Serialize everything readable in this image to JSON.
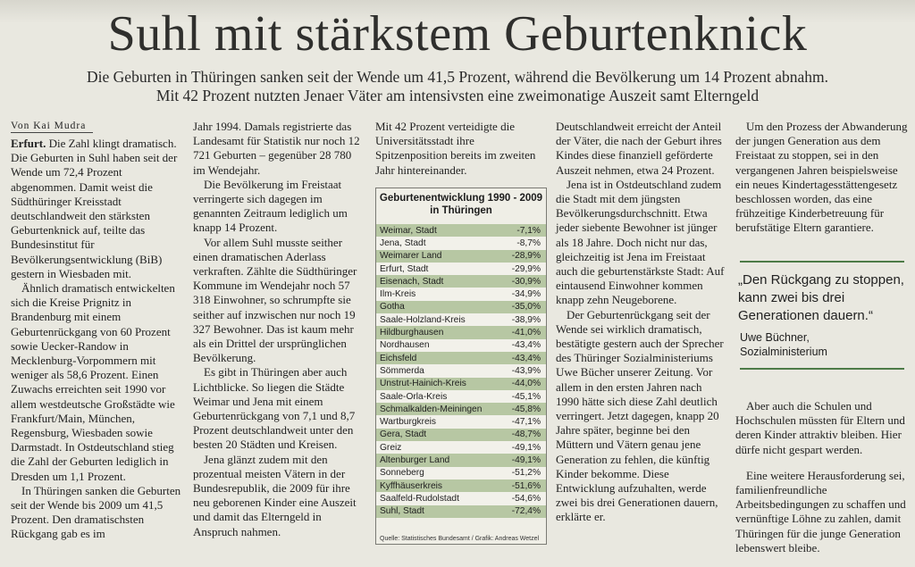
{
  "headline": "Suhl mit stärkstem Geburtenknick",
  "subhead": [
    "Die Geburten in Thüringen sanken seit der Wende um 41,5 Prozent, während die Bevölkerung um 14 Prozent abnahm.",
    "Mit 42 Prozent nutzten Jenaer Väter am intensivsten eine zweimonatige Auszeit samt Elterngeld"
  ],
  "byline": "Von Kai Mudra",
  "col1": {
    "location": "Erfurt.",
    "p1": "Die Zahl klingt dramatisch. Die Geburten in Suhl haben seit der Wende um 72,4 Prozent abgenommen. Damit weist die Südthüringer Kreisstadt deutschlandweit den stärksten Geburtenknick auf, teilte das Bundesinstitut für Bevölkerungsentwicklung (BiB) gestern in Wiesbaden mit.",
    "p2": "Ähnlich dramatisch entwickelten sich die Kreise Prignitz in Brandenburg mit einem Geburtenrückgang von 60 Prozent sowie Uecker-Randow in Mecklenburg-Vorpommern mit weniger als 58,6 Prozent. Einen Zuwachs erreichten seit 1990 vor allem westdeutsche Großstädte wie Frankfurt/Main, München, Regensburg, Wiesbaden sowie Darmstadt. In Ostdeutschland stieg die Zahl der Geburten lediglich in Dresden um 1,1 Prozent.",
    "p3": "In Thüringen sanken die Geburten seit der Wende bis 2009 um 41,5 Prozent. Den dramatischsten Rückgang gab es im"
  },
  "col2": {
    "p1": "Jahr 1994. Damals registrierte das Landesamt für Statistik nur noch 12 721 Geburten – gegenüber 28 780 im Wendejahr.",
    "p2": "Die Bevölkerung im Freistaat verringerte sich dagegen im genannten Zeitraum lediglich um knapp 14 Prozent.",
    "p3": "Vor allem Suhl musste seither einen dramatischen Aderlass verkraften. Zählte die Südthüringer Kommune im Wendejahr noch 57 318 Einwohner, so schrumpfte sie seither auf inzwischen nur noch 19 327 Bewohner. Das ist kaum mehr als ein Drittel der ursprünglichen Bevölkerung.",
    "p4": "Es gibt in Thüringen aber auch Lichtblicke. So liegen die Städte Weimar und Jena mit einem Geburtenrückgang von 7,1 und 8,7 Prozent deutschlandweit unter den besten 20 Städten und Kreisen.",
    "p5": "Jena glänzt zudem mit den prozentual meisten Vätern in der Bundesrepublik, die 2009 für ihre neu geborenen Kinder eine Auszeit und damit das Elterngeld in Anspruch nahmen."
  },
  "col3": {
    "p1": "Mit 42 Prozent verteidigte die Universitätsstadt ihre Spitzenposition bereits im zweiten Jahr hintereinander."
  },
  "table": {
    "title_line1": "Geburtenentwicklung 1990 - 2009",
    "title_line2": "in Thüringen",
    "rows": [
      {
        "name": "Weimar, Stadt",
        "value": "-7,1%"
      },
      {
        "name": "Jena, Stadt",
        "value": "-8,7%"
      },
      {
        "name": "Weimarer Land",
        "value": "-28,9%"
      },
      {
        "name": "Erfurt, Stadt",
        "value": "-29,9%"
      },
      {
        "name": "Eisenach, Stadt",
        "value": "-30,9%"
      },
      {
        "name": "Ilm-Kreis",
        "value": "-34,9%"
      },
      {
        "name": "Gotha",
        "value": "-35,0%"
      },
      {
        "name": "Saale-Holzland-Kreis",
        "value": "-38,9%"
      },
      {
        "name": "Hildburghausen",
        "value": "-41,0%"
      },
      {
        "name": "Nordhausen",
        "value": "-43,4%"
      },
      {
        "name": "Eichsfeld",
        "value": "-43,4%"
      },
      {
        "name": "Sömmerda",
        "value": "-43,9%"
      },
      {
        "name": "Unstrut-Hainich-Kreis",
        "value": "-44,0%"
      },
      {
        "name": "Saale-Orla-Kreis",
        "value": "-45,1%"
      },
      {
        "name": "Schmalkalden-Meiningen",
        "value": "-45,8%"
      },
      {
        "name": "Wartburgkreis",
        "value": "-47,1%"
      },
      {
        "name": "Gera, Stadt",
        "value": "-48,7%"
      },
      {
        "name": "Greiz",
        "value": "-49,1%"
      },
      {
        "name": "Altenburger Land",
        "value": "-49,1%"
      },
      {
        "name": "Sonneberg",
        "value": "-51,2%"
      },
      {
        "name": "Kyffhäuserkreis",
        "value": "-51,6%"
      },
      {
        "name": "Saalfeld-Rudolstadt",
        "value": "-54,6%"
      },
      {
        "name": "Suhl, Stadt",
        "value": "-72,4%"
      }
    ],
    "source": "Quelle: Statistisches Bundesamt / Grafik: Andreas Wetzel"
  },
  "col4": {
    "p1": "Deutschlandweit erreicht der Anteil der Väter, die nach der Geburt ihres Kindes diese finanziell geförderte Auszeit nehmen, etwa 24 Prozent.",
    "p2": "Jena ist in Ostdeutschland zudem die Stadt mit dem jüngsten Bevölkerungsdurchschnitt. Etwa jeder siebente Bewohner ist jünger als 18 Jahre. Doch nicht nur das, gleichzeitig ist Jena im Freistaat auch die geburtenstärkste Stadt: Auf eintausend Einwohner kommen knapp zehn Neugeborene.",
    "p3": "Der Geburtenrückgang seit der Wende sei wirklich dramatisch, bestätigte gestern auch der Sprecher des Thüringer Sozialministeriums Uwe Bücher unserer Zeitung. Vor allem in den ersten Jahren nach 1990 hätte sich diese Zahl deutlich verringert. Jetzt dagegen, knapp 20 Jahre später, beginne bei den Müttern und Vätern genau jene Generation zu fehlen, die künftig Kinder bekomme. Diese Entwicklung aufzuhalten, werde zwei bis drei Generationen dauern, erklärte er."
  },
  "col5": {
    "p1": "Um den Prozess der Abwanderung der jungen Generation aus dem Freistaat zu stoppen, sei in den vergangenen Jahren beispielsweise ein neues Kindertagesstättengesetz beschlossen worden, das eine frühzeitige Kinderbetreuung für berufstätige Eltern garantiere.",
    "quote": "„Den Rückgang zu stoppen, kann zwei bis drei Generationen dauern.“",
    "quote_name": "Uwe Büchner,",
    "quote_role": "Sozialministerium",
    "p2": "Aber auch die Schulen und Hochschulen müssten für Eltern und deren Kinder attraktiv bleiben. Hier dürfe nicht gespart werden.",
    "p3": "Eine weitere Herausforderung sei, familienfreundliche Arbeitsbedingungen zu schaffen und vernünftige Löhne zu zahlen, damit Thüringen für die junge Generation lebenswert bleibe."
  },
  "colors": {
    "paper": "#e9e8e0",
    "table_green": "#b7c7a3",
    "rule_green": "#4d7b47"
  }
}
